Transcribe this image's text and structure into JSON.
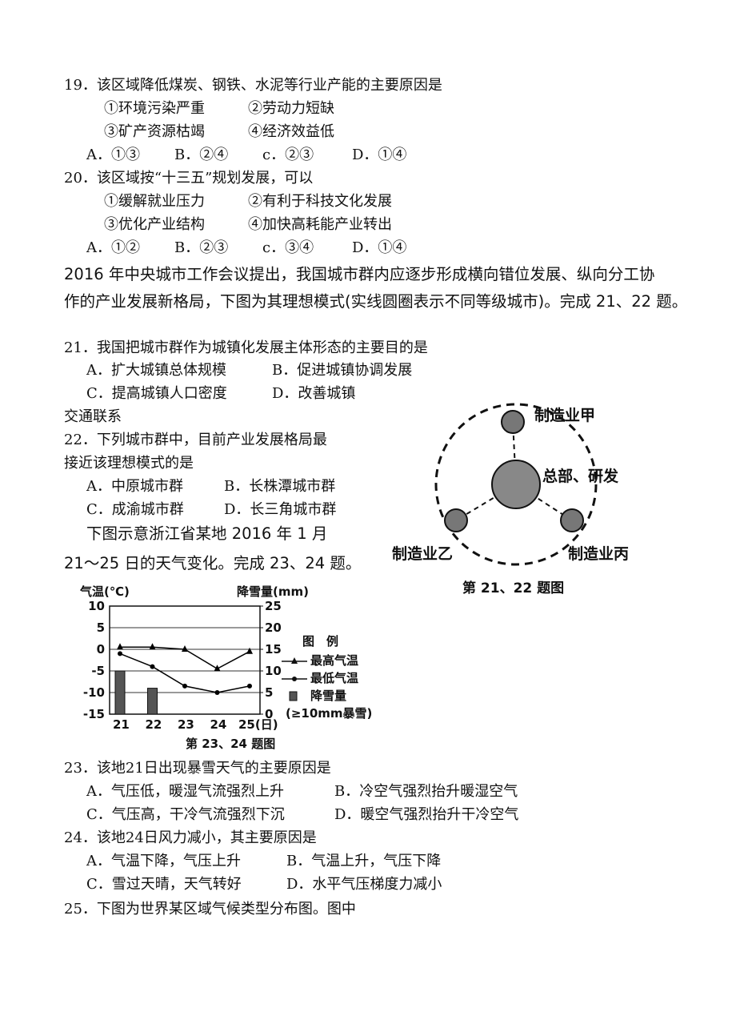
{
  "q19": {
    "stem": "19．该区域降低煤炭、钢铁、水泥等行业产能的主要原因是",
    "items": [
      "①环境污染严重",
      "②劳动力短缺",
      "③矿产资源枯竭",
      "④经济效益低"
    ],
    "choices": [
      "A．①③",
      "B．②④",
      "c．②③",
      "D．①④"
    ]
  },
  "q20": {
    "stem": "20．该区域按“十三五”规划发展，可以",
    "items": [
      "①缓解就业压力",
      "②有利于科技文化发展",
      "③优化产业结构",
      "④加快高耗能产业转出"
    ],
    "choices": [
      "A．①②",
      "B．②③",
      "c．③④",
      "D．①④"
    ]
  },
  "intro": [
    "2016 年中央城市工作会议提出，我国城市群内应逐步形成横向错位发展、纵向分工协",
    "作的产业发展新格局，下图为其理想模式(实线圆圈表示不同等级城市)。完成 21、22 题。"
  ],
  "q21": {
    "stem": "21．我国把城市群作为城镇化发展主体形态的主要目的是",
    "choices": [
      "A．扩大城镇总体规模",
      "B．促进城镇协调发展",
      "C．提高城镇人口密度",
      "D．改善城镇"
    ],
    "wrap": "交通联系"
  },
  "q22": {
    "stem": [
      "22．下列城市群中，目前产业发展格局最",
      "接近该理想模式的是"
    ],
    "choices": [
      "A．中原城市群",
      "B．长株潭城市群",
      "C．成渝城市群",
      "D．长三角城市群"
    ]
  },
  "intro2": [
    "下图示意浙江省某地 2016 年 1 月",
    "21～25 日的天气变化。完成 23、24 题。"
  ],
  "diagram": {
    "nodes": [
      "制造业甲",
      "总部、研发",
      "制造业乙",
      "制造业丙"
    ],
    "caption": "第 21、22 题图"
  },
  "weather_chart": {
    "type": "line",
    "y_label": "气温(℃)",
    "y2_label": "降雪量(mm)",
    "categories": [
      "21",
      "22",
      "23",
      "24",
      "25(日)"
    ],
    "ylim": [
      -15,
      10
    ],
    "yticks": [
      10,
      5,
      0,
      -5,
      -10,
      -15
    ],
    "y2lim": [
      0,
      25
    ],
    "y2ticks": [
      25,
      20,
      15,
      10,
      5,
      0
    ],
    "series": [
      {
        "name": "最高气温",
        "color": "#000",
        "marker": "triangle",
        "values": [
          0.5,
          0.5,
          0,
          -4.5,
          -0.5
        ]
      },
      {
        "name": "最低气温",
        "color": "#000",
        "marker": "dot",
        "values": [
          -1,
          -4,
          -8.5,
          -10,
          -8.5
        ]
      },
      {
        "name": "降雪量",
        "color": "#555",
        "type": "bar",
        "axis": "y2",
        "values": [
          10,
          6,
          0,
          0,
          0
        ]
      }
    ],
    "legend_title": "图　例",
    "legend_note": "(≥10mm暴雪)",
    "caption": "第 23、24 题图"
  },
  "q23": {
    "stem": "23．该地21日出现暴雪天气的主要原因是",
    "choices": [
      "A．气压低，暖湿气流强烈上升",
      "B．冷空气强烈抬升暖湿空气",
      "C．气压高，干冷气流强烈下沉",
      "D．暖空气强烈抬升干冷空气"
    ]
  },
  "q24": {
    "stem": "24．该地24日风力减小，其主要原因是",
    "choices": [
      "A．气温下降，气压上升",
      "B．气温上升，气压下降",
      "C．雪过天晴，天气转好",
      "D．水平气压梯度力减小"
    ]
  },
  "q25": {
    "stem": "25．下图为世界某区域气候类型分布图。图中"
  }
}
